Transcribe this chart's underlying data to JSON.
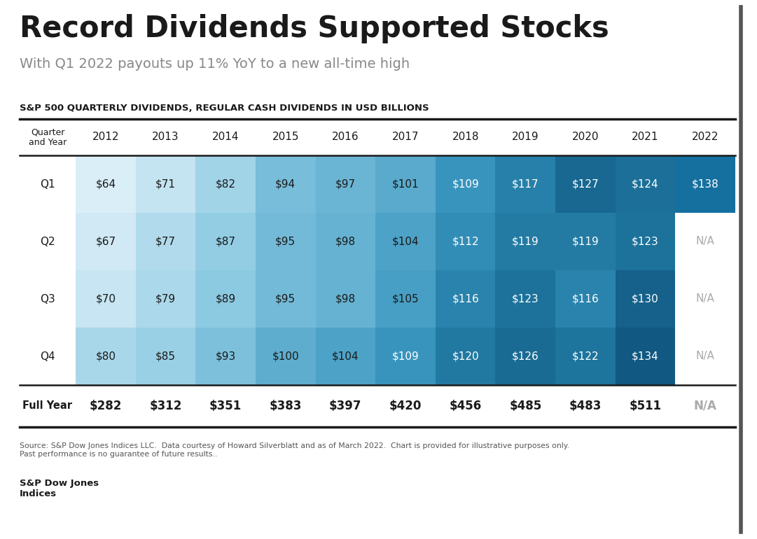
{
  "title": "Record Dividends Supported Stocks",
  "subtitle": "With Q1 2022 payouts up 11% YoY to a new all-time high",
  "table_title": "S&P 500 QUARTERLY DIVIDENDS, REGULAR CASH DIVIDENDS IN USD BILLIONS",
  "years": [
    "2012",
    "2013",
    "2014",
    "2015",
    "2016",
    "2017",
    "2018",
    "2019",
    "2020",
    "2021",
    "2022"
  ],
  "quarters": [
    "Q1",
    "Q2",
    "Q3",
    "Q4"
  ],
  "data": {
    "Q1": [
      64,
      71,
      82,
      94,
      97,
      101,
      109,
      117,
      127,
      124,
      138
    ],
    "Q2": [
      67,
      77,
      87,
      95,
      98,
      104,
      112,
      119,
      119,
      123,
      null
    ],
    "Q3": [
      70,
      79,
      89,
      95,
      98,
      105,
      116,
      123,
      116,
      130,
      null
    ],
    "Q4": [
      80,
      85,
      93,
      100,
      104,
      109,
      120,
      126,
      122,
      134,
      null
    ]
  },
  "full_year": [
    282,
    312,
    351,
    383,
    397,
    420,
    456,
    485,
    483,
    511,
    null
  ],
  "source_text": "Source: S&P Dow Jones Indices LLC.  Data courtesy of Howard Silverblatt and as of March 2022.  Chart is provided for illustrative purposes only.\nPast performance is no guarantee of future results..",
  "footer_bold": "S&P Dow Jones\nIndices",
  "bg_color": "#ffffff",
  "title_color": "#1a1a1a",
  "subtitle_color": "#888888",
  "table_title_color": "#1a1a1a",
  "header_text_color": "#1a1a1a",
  "cell_text_color": "#1a1a1a",
  "na_text_color": "#aaaaaa",
  "full_year_text_color": "#1a1a1a",
  "right_border_color": "#555555"
}
